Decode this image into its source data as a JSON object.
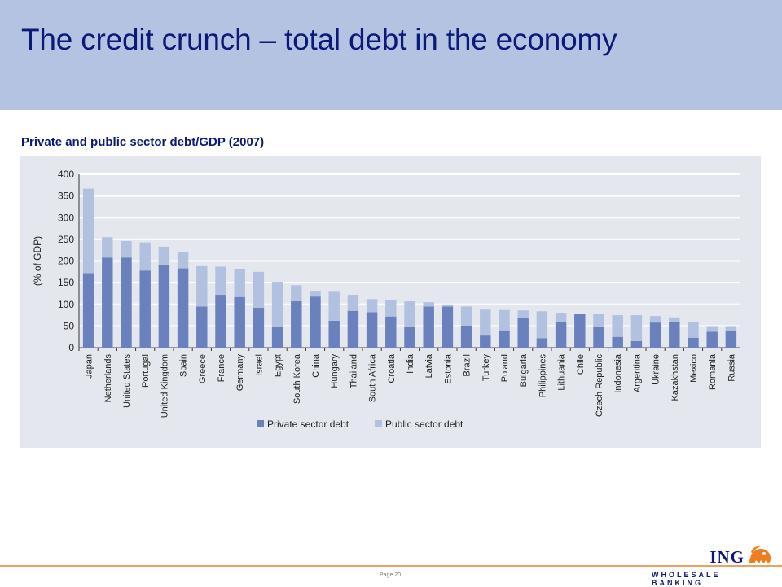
{
  "header": {
    "title": "The credit crunch – total debt in the economy"
  },
  "subtitle": "Private and public sector debt/GDP (2007)",
  "footer": {
    "page": "Page 20",
    "logo_text": "ING",
    "logo_sub": "WHOLESALE BANKING"
  },
  "colors": {
    "private": "#6b81bd",
    "public": "#b3c1e0",
    "header_bg": "#b4c3e2",
    "title": "#0b1a78",
    "panel_bg": "#e4e8ee",
    "footer_line": "#f0a060",
    "logo_orange": "#ef7d1e"
  },
  "chart_data": {
    "type": "bar",
    "stacked": true,
    "title": "",
    "xlabel": "",
    "ylabel": "(% of GDP)",
    "ylim": [
      0,
      400
    ],
    "yticks": [
      0,
      50,
      100,
      150,
      200,
      250,
      300,
      350,
      400
    ],
    "grid": true,
    "legend_position": "bottom",
    "categories": [
      "Japan",
      "Netherlands",
      "United States",
      "Portugal",
      "United Kingdom",
      "Spain",
      "Greece",
      "France",
      "Germany",
      "Israel",
      "Egypt",
      "South Korea",
      "China",
      "Hungary",
      "Thailand",
      "South Africa",
      "Croatia",
      "India",
      "Latvia",
      "Estonia",
      "Brazil",
      "Turkey",
      "Poland",
      "Bulgaria",
      "Philippines",
      "Lithuania",
      "Chile",
      "Czech Republic",
      "Indonesia",
      "Argentina",
      "Ukraine",
      "Kazakhstan",
      "Mexico",
      "Romania",
      "Russia"
    ],
    "series": [
      {
        "name": "Private sector debt",
        "values": [
          172,
          208,
          208,
          178,
          190,
          183,
          95,
          122,
          117,
          92,
          47,
          107,
          118,
          62,
          85,
          82,
          72,
          47,
          95,
          95,
          50,
          28,
          40,
          68,
          22,
          60,
          77,
          47,
          25,
          15,
          58,
          60,
          23,
          37,
          38
        ]
      },
      {
        "name": "Public sector debt",
        "values": [
          195,
          47,
          38,
          65,
          43,
          38,
          93,
          65,
          65,
          83,
          105,
          37,
          12,
          67,
          37,
          30,
          37,
          60,
          10,
          3,
          45,
          60,
          47,
          18,
          62,
          20,
          0,
          30,
          50,
          60,
          15,
          10,
          37,
          11,
          10
        ]
      }
    ]
  }
}
